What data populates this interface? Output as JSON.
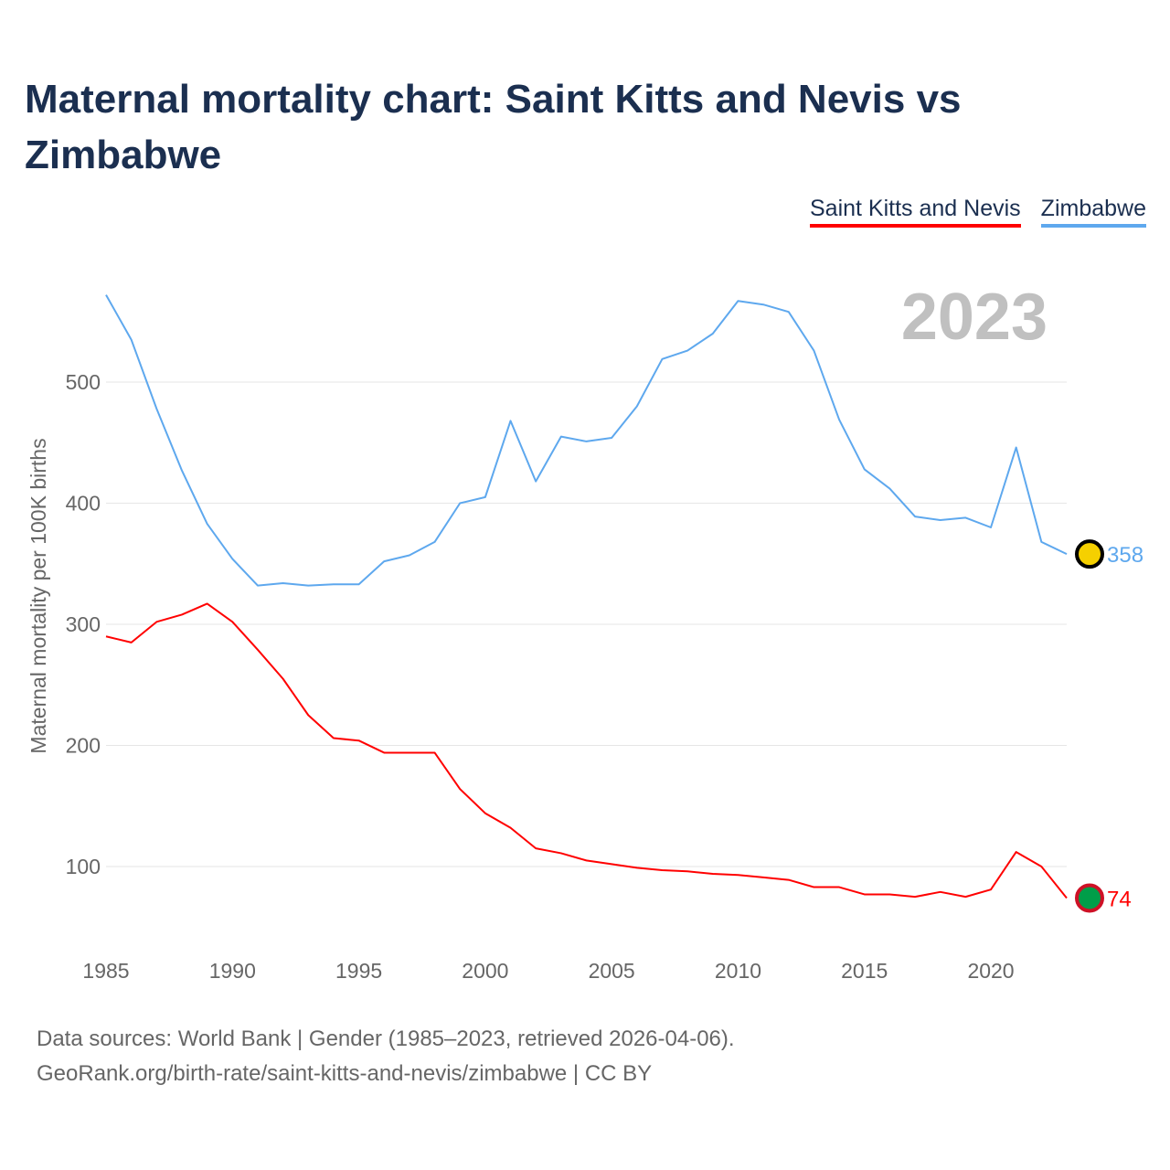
{
  "title": "Maternal mortality chart: Saint Kitts and Nevis vs Zimbabwe",
  "legend": [
    "Saint Kitts and Nevis",
    "Zimbabwe"
  ],
  "year_label": "2023",
  "source_line1": "Data sources: World Bank | Gender (1985–2023, retrieved 2026-04-06).",
  "source_line2": "GeoRank.org/birth-rate/saint-kitts-and-nevis/zimbabwe | CC BY",
  "chart_data": {
    "type": "line",
    "title": "Maternal mortality chart: Saint Kitts and Nevis vs Zimbabwe",
    "xlabel": "",
    "ylabel": "Maternal mortality per 100K births",
    "x": [
      1985,
      1986,
      1987,
      1988,
      1989,
      1990,
      1991,
      1992,
      1993,
      1994,
      1995,
      1996,
      1997,
      1998,
      1999,
      2000,
      2001,
      2002,
      2003,
      2004,
      2005,
      2006,
      2007,
      2008,
      2009,
      2010,
      2011,
      2012,
      2013,
      2014,
      2015,
      2016,
      2017,
      2018,
      2019,
      2020,
      2021,
      2022,
      2023
    ],
    "xlim": [
      1985,
      2023
    ],
    "ylim": [
      40,
      580
    ],
    "xticks": [
      1985,
      1990,
      1995,
      2000,
      2005,
      2010,
      2015,
      2020
    ],
    "yticks": [
      100,
      200,
      300,
      400,
      500
    ],
    "grid": true,
    "legend_position": "top-right",
    "series": [
      {
        "name": "Saint Kitts and Nevis",
        "color": "#ff0000",
        "end_label": "74",
        "values": [
          290,
          285,
          302,
          308,
          317,
          302,
          279,
          255,
          225,
          206,
          204,
          194,
          194,
          194,
          164,
          144,
          132,
          115,
          111,
          105,
          102,
          99,
          97,
          96,
          94,
          93,
          91,
          89,
          83,
          83,
          77,
          77,
          75,
          79,
          75,
          81,
          112,
          100,
          74
        ]
      },
      {
        "name": "Zimbabwe",
        "color": "#5ea8ee",
        "end_label": "358",
        "values": [
          572,
          535,
          478,
          427,
          383,
          354,
          332,
          334,
          332,
          333,
          333,
          352,
          357,
          368,
          400,
          405,
          468,
          418,
          455,
          451,
          454,
          480,
          519,
          526,
          540,
          567,
          564,
          558,
          526,
          469,
          428,
          412,
          389,
          386,
          388,
          380,
          446,
          368,
          358
        ]
      }
    ]
  }
}
